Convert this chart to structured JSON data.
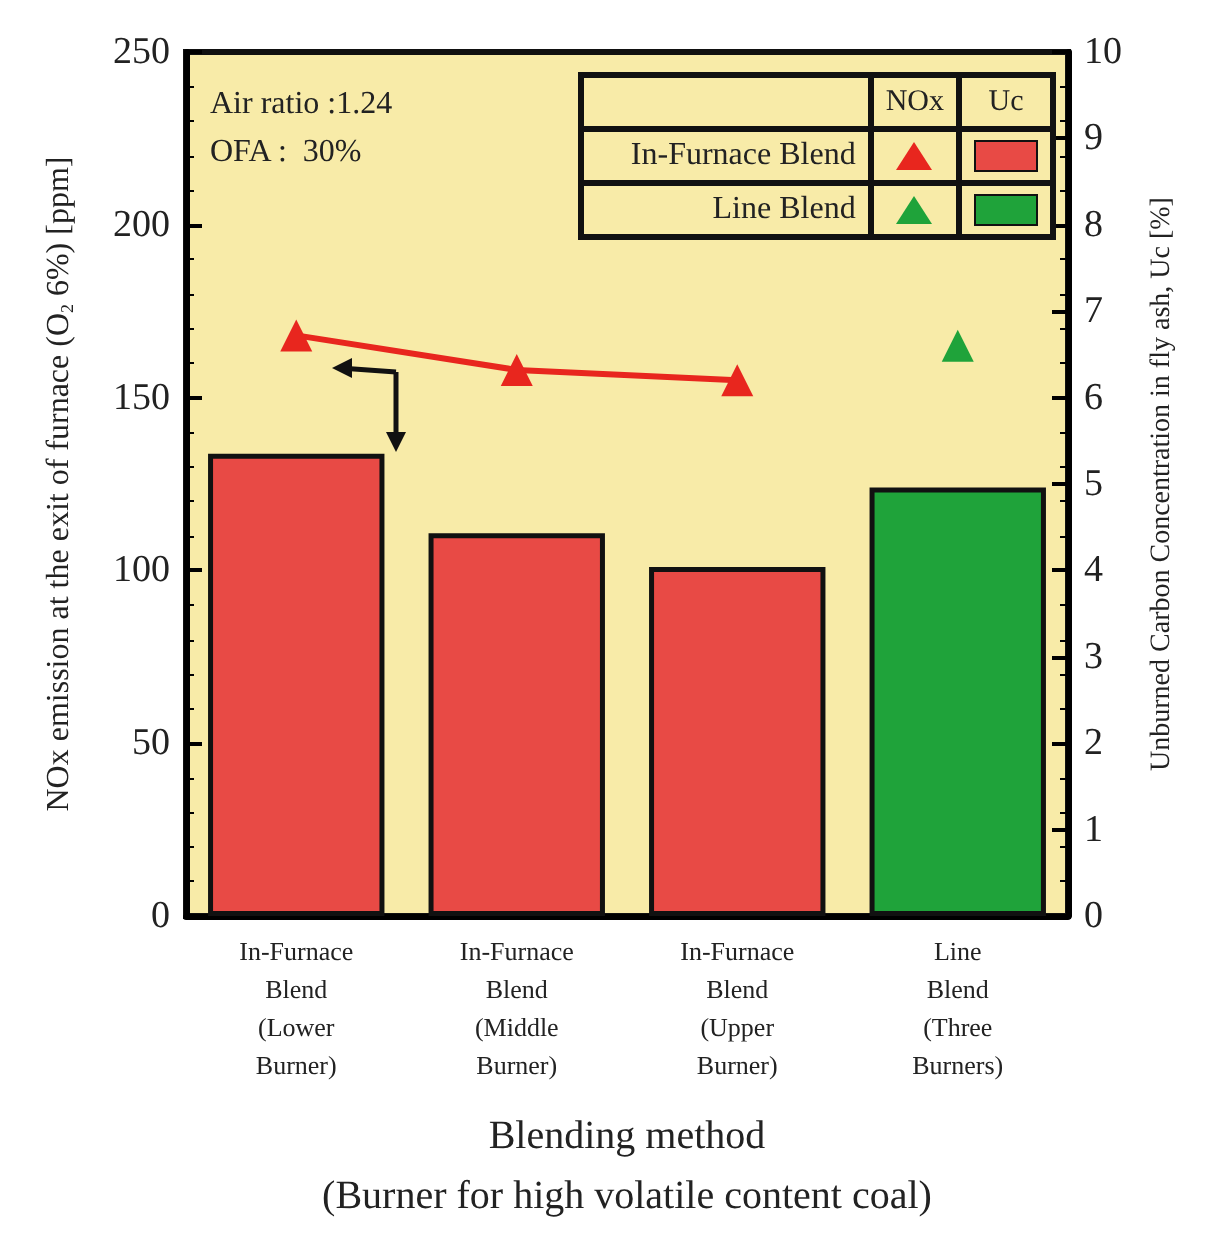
{
  "chart_data": {
    "type": "bar",
    "categories": [
      "In-Furnace\nBlend\n(Lower\nBurner)",
      "In-Furnace\nBlend\n(Middle\nBurner)",
      "In-Furnace\nBlend\n(Upper\nBurner)",
      "Line\nBlend\n(Three\nBurners)"
    ],
    "xlabel": "Blending method\n(Burner for high volatile content coal)",
    "ylabel": "NOx emission at the exit of furnace (O$_{2}$ 6%) [ppm]",
    "y2label": "Unburned Carbon Concentration in fly ash, Uc [%]",
    "series": [
      {
        "name": "In-Furnace Blend",
        "type": "line",
        "color": "#e8261e",
        "values": [
          168,
          158,
          155,
          null
        ]
      },
      {
        "name": "Line Blend",
        "type": "scatter",
        "color": "#1fa33a",
        "values": [
          null,
          null,
          null,
          165
        ]
      },
      {
        "type": "bar",
        "axis": "y2",
        "values": [
          5.35,
          4.43,
          4.04,
          4.96
        ],
        "colors": [
          "#e84a45",
          "#e84a45",
          "#e84a45",
          "#1fa33a"
        ]
      }
    ],
    "ylim": [
      0,
      250
    ],
    "yticks": [
      0,
      50,
      100,
      150,
      200,
      250
    ],
    "y2lim": [
      0,
      10
    ],
    "y2ticks": [
      0,
      1,
      2,
      3,
      4,
      5,
      6,
      7,
      8,
      9,
      10
    ],
    "annotations": [
      "Air ratio :1.24",
      "OFA :  30%",
      "NOx",
      "Uc"
    ],
    "legend": "top right",
    "grid": false,
    "marker": "triangle",
    "line_style": "solid"
  }
}
